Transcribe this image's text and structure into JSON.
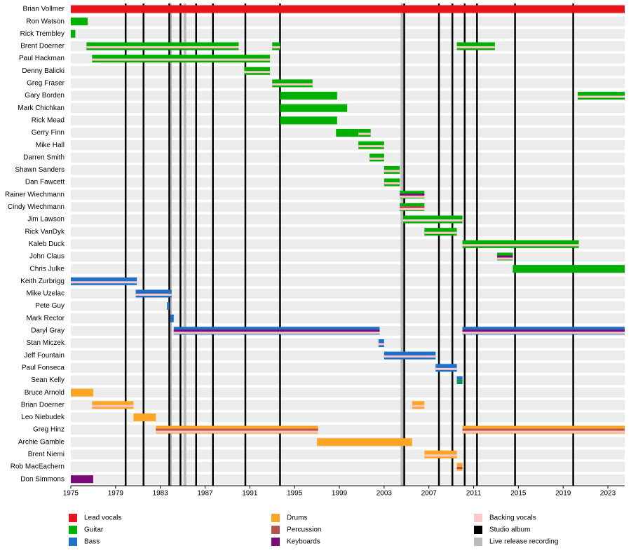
{
  "chart_data": {
    "type": "timeline",
    "xlim": [
      1975,
      2024.5
    ],
    "xticks": [
      1975,
      1979,
      1983,
      1987,
      1991,
      1995,
      1999,
      2003,
      2007,
      2011,
      2015,
      2019,
      2023
    ],
    "roles": [
      {
        "name": "Lead vocals",
        "color": "#e8141c"
      },
      {
        "name": "Guitar",
        "color": "#00b000"
      },
      {
        "name": "Bass",
        "color": "#1e6fc8"
      },
      {
        "name": "Drums",
        "color": "#ffa526"
      },
      {
        "name": "Percussion",
        "color": "#b5534e"
      },
      {
        "name": "Keyboards",
        "color": "#7a0a7a"
      },
      {
        "name": "Backing vocals",
        "color": "#ffc6c6"
      },
      {
        "name": "Studio album",
        "color": "#000000"
      },
      {
        "name": "Live release recording",
        "color": "#bbbbbb"
      }
    ],
    "studio_albums": [
      1979.9,
      1981.5,
      1983.8,
      1984.8,
      1986.2,
      1987.7,
      1990.6,
      1993.7,
      2004.8,
      2007.9,
      2009.1,
      2010.2,
      2011.3,
      2014.7,
      2019.9
    ],
    "live_releases": [
      1983.9,
      1985.2,
      2004.6
    ],
    "members": [
      {
        "name": "Brian Vollmer",
        "stints": [
          {
            "start": 1975,
            "end": 2024.5,
            "roles": [
              "Lead vocals"
            ]
          }
        ]
      },
      {
        "name": "Ron Watson",
        "stints": [
          {
            "start": 1975,
            "end": 1976.5,
            "roles": [
              "Guitar"
            ]
          }
        ]
      },
      {
        "name": "Rick Trembley",
        "stints": [
          {
            "start": 1975,
            "end": 1975.4,
            "roles": [
              "Guitar"
            ]
          }
        ]
      },
      {
        "name": "Brent Doerner",
        "stints": [
          {
            "start": 1976.4,
            "end": 1990.0,
            "roles": [
              "Guitar",
              "Backing vocals"
            ]
          },
          {
            "start": 1993.0,
            "end": 1993.7,
            "roles": [
              "Guitar",
              "Backing vocals"
            ]
          },
          {
            "start": 2009.5,
            "end": 2012.9,
            "roles": [
              "Guitar",
              "Backing vocals"
            ]
          }
        ]
      },
      {
        "name": "Paul Hackman",
        "stints": [
          {
            "start": 1976.9,
            "end": 1992.8,
            "roles": [
              "Guitar",
              "Backing vocals"
            ]
          }
        ]
      },
      {
        "name": "Denny Balicki",
        "stints": [
          {
            "start": 1990.5,
            "end": 1992.8,
            "roles": [
              "Guitar",
              "Backing vocals"
            ]
          }
        ]
      },
      {
        "name": "Greg Fraser",
        "stints": [
          {
            "start": 1993.0,
            "end": 1996.6,
            "roles": [
              "Guitar",
              "Backing vocals"
            ]
          }
        ]
      },
      {
        "name": "Gary Borden",
        "stints": [
          {
            "start": 1993.7,
            "end": 1998.8,
            "roles": [
              "Guitar"
            ]
          },
          {
            "start": 2020.3,
            "end": 2024.5,
            "roles": [
              "Guitar",
              "Backing vocals"
            ]
          }
        ]
      },
      {
        "name": "Mark Chichkan",
        "stints": [
          {
            "start": 1993.7,
            "end": 1999.7,
            "roles": [
              "Guitar"
            ]
          }
        ]
      },
      {
        "name": "Rick Mead",
        "stints": [
          {
            "start": 1993.7,
            "end": 1998.8,
            "roles": [
              "Guitar"
            ]
          }
        ]
      },
      {
        "name": "Gerry Finn",
        "stints": [
          {
            "start": 1998.7,
            "end": 2000.7,
            "roles": [
              "Guitar"
            ]
          },
          {
            "start": 2000.7,
            "end": 2001.8,
            "roles": [
              "Guitar",
              "Backing vocals"
            ]
          }
        ]
      },
      {
        "name": "Mike Hall",
        "stints": [
          {
            "start": 2000.7,
            "end": 2003.0,
            "roles": [
              "Guitar",
              "Backing vocals"
            ]
          }
        ]
      },
      {
        "name": "Darren Smith",
        "stints": [
          {
            "start": 2001.7,
            "end": 2003.0,
            "roles": [
              "Guitar",
              "Backing vocals"
            ]
          }
        ]
      },
      {
        "name": "Shawn Sanders",
        "stints": [
          {
            "start": 2003.0,
            "end": 2004.4,
            "roles": [
              "Guitar",
              "Backing vocals"
            ]
          }
        ]
      },
      {
        "name": "Dan Fawcett",
        "stints": [
          {
            "start": 2003.0,
            "end": 2004.4,
            "roles": [
              "Guitar",
              "Backing vocals"
            ]
          }
        ]
      },
      {
        "name": "Rainer Wiechmann",
        "stints": [
          {
            "start": 2004.4,
            "end": 2006.6,
            "roles": [
              "Guitar",
              "Keyboards",
              "Backing vocals"
            ]
          }
        ]
      },
      {
        "name": "Cindy Wiechmann",
        "stints": [
          {
            "start": 2004.4,
            "end": 2006.6,
            "roles": [
              "Guitar",
              "Percussion",
              "Backing vocals"
            ]
          }
        ]
      },
      {
        "name": "Jim Lawson",
        "stints": [
          {
            "start": 2004.7,
            "end": 2010.0,
            "roles": [
              "Guitar",
              "Backing vocals"
            ]
          }
        ]
      },
      {
        "name": "Rick VanDyk",
        "stints": [
          {
            "start": 2006.6,
            "end": 2009.5,
            "roles": [
              "Guitar",
              "Backing vocals"
            ]
          }
        ]
      },
      {
        "name": "Kaleb Duck",
        "stints": [
          {
            "start": 2010.0,
            "end": 2020.4,
            "roles": [
              "Guitar",
              "Backing vocals"
            ]
          }
        ]
      },
      {
        "name": "John Claus",
        "stints": [
          {
            "start": 2013.1,
            "end": 2014.5,
            "roles": [
              "Guitar",
              "Keyboards",
              "Backing vocals"
            ]
          }
        ]
      },
      {
        "name": "Chris Julke",
        "stints": [
          {
            "start": 2014.5,
            "end": 2024.5,
            "roles": [
              "Guitar"
            ]
          }
        ]
      },
      {
        "name": "Keith Zurbrigg",
        "stints": [
          {
            "start": 1975,
            "end": 1980.9,
            "roles": [
              "Bass",
              "Backing vocals"
            ]
          }
        ]
      },
      {
        "name": "Mike Uzelac",
        "stints": [
          {
            "start": 1980.8,
            "end": 1984.0,
            "roles": [
              "Bass",
              "Backing vocals"
            ]
          }
        ]
      },
      {
        "name": "Pete Guy",
        "stints": [
          {
            "start": 1983.6,
            "end": 1983.8,
            "roles": [
              "Bass"
            ]
          }
        ]
      },
      {
        "name": "Mark Rector",
        "stints": [
          {
            "start": 1983.9,
            "end": 1984.2,
            "roles": [
              "Bass"
            ]
          }
        ]
      },
      {
        "name": "Daryl Gray",
        "stints": [
          {
            "start": 1984.2,
            "end": 2002.6,
            "roles": [
              "Bass",
              "Keyboards",
              "Backing vocals"
            ]
          },
          {
            "start": 2010.0,
            "end": 2024.5,
            "roles": [
              "Bass",
              "Keyboards",
              "Backing vocals"
            ]
          }
        ]
      },
      {
        "name": "Stan Miczek",
        "stints": [
          {
            "start": 2002.5,
            "end": 2003.0,
            "roles": [
              "Bass",
              "Backing vocals"
            ]
          }
        ]
      },
      {
        "name": "Jeff Fountain",
        "stints": [
          {
            "start": 2003.0,
            "end": 2007.6,
            "roles": [
              "Bass",
              "Backing vocals"
            ]
          }
        ]
      },
      {
        "name": "Paul Fonseca",
        "stints": [
          {
            "start": 2007.6,
            "end": 2009.5,
            "roles": [
              "Bass",
              "Backing vocals"
            ]
          }
        ]
      },
      {
        "name": "Sean Kelly",
        "stints": [
          {
            "start": 2009.5,
            "end": 2010.0,
            "roles": [
              "Bass",
              "Guitar"
            ]
          }
        ]
      },
      {
        "name": "Bruce Arnold",
        "stints": [
          {
            "start": 1975,
            "end": 1977.0,
            "roles": [
              "Drums"
            ]
          }
        ]
      },
      {
        "name": "Brian Doerner",
        "stints": [
          {
            "start": 1976.9,
            "end": 1980.6,
            "roles": [
              "Drums",
              "Backing vocals"
            ]
          },
          {
            "start": 2005.5,
            "end": 2006.6,
            "roles": [
              "Drums",
              "Backing vocals"
            ]
          }
        ]
      },
      {
        "name": "Leo Niebudek",
        "stints": [
          {
            "start": 1980.6,
            "end": 1982.6,
            "roles": [
              "Drums"
            ]
          }
        ]
      },
      {
        "name": "Greg Hinz",
        "stints": [
          {
            "start": 1982.6,
            "end": 1997.1,
            "roles": [
              "Drums",
              "Percussion",
              "Backing vocals"
            ]
          },
          {
            "start": 2010.0,
            "end": 2024.5,
            "roles": [
              "Drums",
              "Percussion",
              "Backing vocals"
            ]
          }
        ]
      },
      {
        "name": "Archie Gamble",
        "stints": [
          {
            "start": 1997.0,
            "end": 2005.5,
            "roles": [
              "Drums"
            ]
          }
        ]
      },
      {
        "name": "Brent Niemi",
        "stints": [
          {
            "start": 2006.6,
            "end": 2009.5,
            "roles": [
              "Drums",
              "Backing vocals"
            ]
          }
        ]
      },
      {
        "name": "Rob MacEachern",
        "stints": [
          {
            "start": 2009.5,
            "end": 2010.0,
            "roles": [
              "Drums",
              "Percussion"
            ]
          }
        ]
      },
      {
        "name": "Don Simmons",
        "stints": [
          {
            "start": 1975,
            "end": 1977.0,
            "roles": [
              "Keyboards"
            ]
          }
        ]
      }
    ]
  }
}
